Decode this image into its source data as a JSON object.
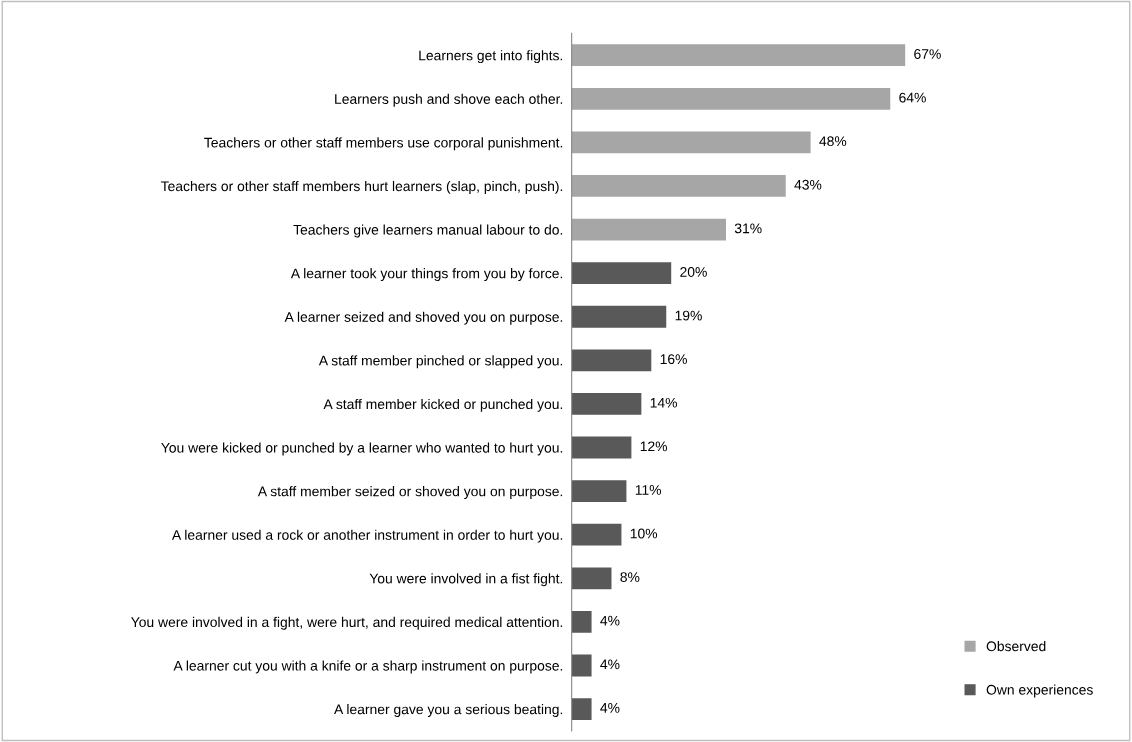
{
  "chart_data": {
    "type": "bar",
    "orientation": "horizontal",
    "legend": "bottom right",
    "grid": false,
    "categories": [
      "Learners get into fights.",
      "Learners push and shove each other.",
      "Teachers or other staff members use corporal punishment.",
      "Teachers or other staff members hurt learners (slap, pinch, push).",
      "Teachers give learners manual labour to do.",
      "A learner took your things from you by force.",
      "A learner seized and shoved you on purpose.",
      "A staff member pinched or slapped you.",
      "A staff member kicked or punched you.",
      "You were kicked or punched by a learner who wanted to hurt you.",
      "A staff member seized or shoved you on purpose.",
      "A learner used a rock or another instrument in order to hurt you.",
      "You were involved in a fist fight.",
      "You were involved in a fight, were hurt, and required medical attention.",
      "A learner cut you with a knife or a sharp instrument on purpose.",
      "A learner gave you a serious beating."
    ],
    "series": [
      {
        "name": "Observed",
        "color": "#a6a6a6",
        "values": [
          67,
          64,
          48,
          43,
          31,
          null,
          null,
          null,
          null,
          null,
          null,
          null,
          null,
          null,
          null,
          null
        ],
        "value_labels": [
          "67%",
          "64%",
          "48%",
          "43%",
          "31%",
          null,
          null,
          null,
          null,
          null,
          null,
          null,
          null,
          null,
          null,
          null
        ]
      },
      {
        "name": "Own experiences",
        "color": "#595959",
        "values": [
          null,
          null,
          null,
          null,
          null,
          20,
          19,
          16,
          14,
          12,
          11,
          10,
          8,
          4,
          4,
          4
        ],
        "value_labels": [
          null,
          null,
          null,
          null,
          null,
          "20%",
          "19%",
          "16%",
          "14%",
          "12%",
          "11%",
          "10%",
          "8%",
          "4%",
          "4%",
          "4%"
        ]
      }
    ]
  }
}
